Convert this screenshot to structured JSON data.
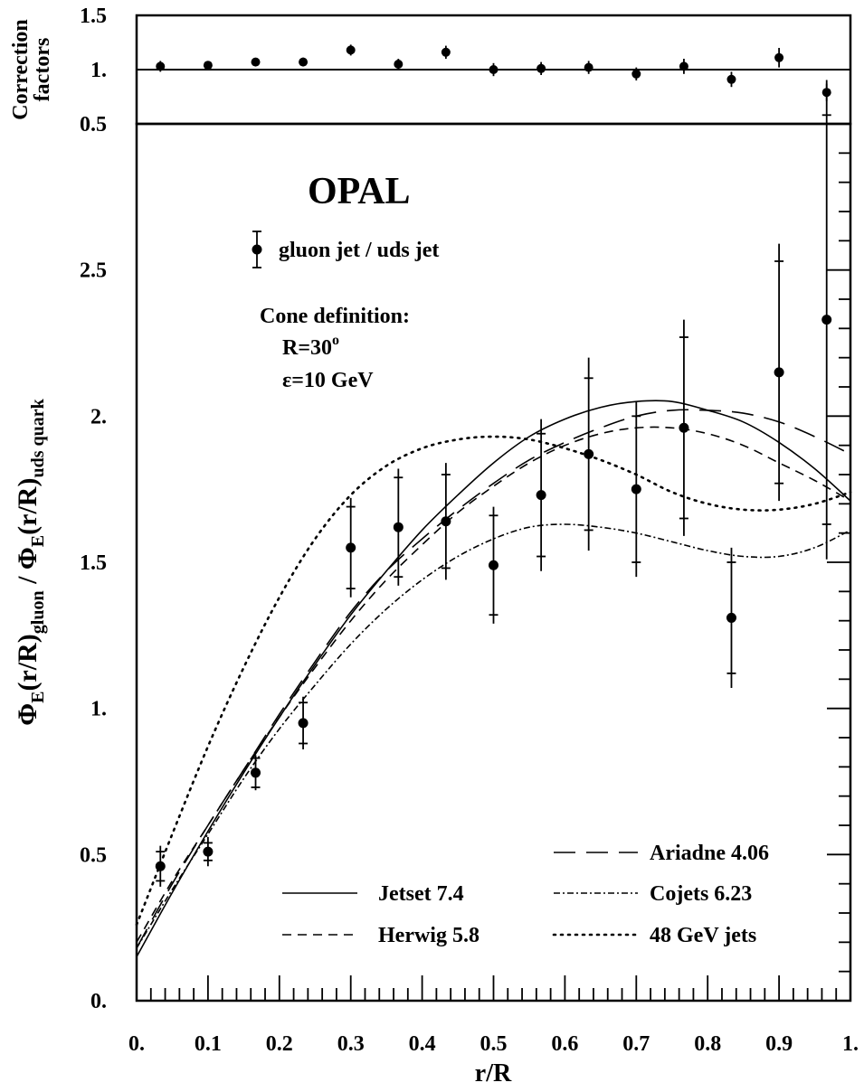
{
  "chart_data": [
    {
      "panel": "correction",
      "type": "scatter",
      "ylabel_line1": "Correction",
      "ylabel_line2": "factors",
      "xlim": [
        0,
        1
      ],
      "ylim": [
        0.5,
        1.5
      ],
      "y_ticks": [
        {
          "value": 0.5,
          "label": "0.5"
        },
        {
          "value": 1.0,
          "label": "1."
        },
        {
          "value": 1.5,
          "label": "1.5"
        }
      ],
      "reference_line": 1.0,
      "points": [
        {
          "x": 0.0333,
          "y": 1.03,
          "err": 0.05
        },
        {
          "x": 0.1,
          "y": 1.04,
          "err": 0.03
        },
        {
          "x": 0.1667,
          "y": 1.07,
          "err": 0.03
        },
        {
          "x": 0.2333,
          "y": 1.07,
          "err": 0.04
        },
        {
          "x": 0.3,
          "y": 1.18,
          "err": 0.05
        },
        {
          "x": 0.3667,
          "y": 1.05,
          "err": 0.05
        },
        {
          "x": 0.4333,
          "y": 1.16,
          "err": 0.06
        },
        {
          "x": 0.5,
          "y": 1.0,
          "err": 0.06
        },
        {
          "x": 0.5667,
          "y": 1.01,
          "err": 0.06
        },
        {
          "x": 0.6333,
          "y": 1.02,
          "err": 0.06
        },
        {
          "x": 0.7,
          "y": 0.96,
          "err": 0.06
        },
        {
          "x": 0.7667,
          "y": 1.03,
          "err": 0.07
        },
        {
          "x": 0.8333,
          "y": 0.91,
          "err": 0.07
        },
        {
          "x": 0.9,
          "y": 1.11,
          "err": 0.09
        },
        {
          "x": 0.9667,
          "y": 0.79,
          "err": 0.08
        }
      ]
    },
    {
      "panel": "main",
      "type": "line",
      "experiment_label": "OPAL",
      "xlabel": "r/R",
      "ylabel_main": "Φ",
      "ylabel_E": "E",
      "ylabel_mid": "(r/R)",
      "ylabel_gluon": "gluon",
      "ylabel_slash": " / Φ",
      "ylabel_uds": "uds quark",
      "xlim": [
        0,
        1
      ],
      "ylim": [
        0,
        3
      ],
      "x_ticks": [
        {
          "value": 0.0,
          "label": "0."
        },
        {
          "value": 0.1,
          "label": "0.1"
        },
        {
          "value": 0.2,
          "label": "0.2"
        },
        {
          "value": 0.3,
          "label": "0.3"
        },
        {
          "value": 0.4,
          "label": "0.4"
        },
        {
          "value": 0.5,
          "label": "0.5"
        },
        {
          "value": 0.6,
          "label": "0.6"
        },
        {
          "value": 0.7,
          "label": "0.7"
        },
        {
          "value": 0.8,
          "label": "0.8"
        },
        {
          "value": 0.9,
          "label": "0.9"
        },
        {
          "value": 1.0,
          "label": "1."
        }
      ],
      "y_ticks": [
        {
          "value": 0.0,
          "label": "0."
        },
        {
          "value": 0.5,
          "label": "0.5"
        },
        {
          "value": 1.0,
          "label": "1."
        },
        {
          "value": 1.5,
          "label": "1.5"
        },
        {
          "value": 2.0,
          "label": "2."
        },
        {
          "value": 2.5,
          "label": "2.5"
        }
      ],
      "data_points": {
        "name": "gluon jet / uds jet",
        "points": [
          {
            "x": 0.0333,
            "y": 0.46,
            "err_stat": 0.05,
            "err_tot": 0.07
          },
          {
            "x": 0.1,
            "y": 0.51,
            "err_stat": 0.03,
            "err_tot": 0.05
          },
          {
            "x": 0.1667,
            "y": 0.78,
            "err_stat": 0.05,
            "err_tot": 0.06
          },
          {
            "x": 0.2333,
            "y": 0.95,
            "err_stat": 0.07,
            "err_tot": 0.09
          },
          {
            "x": 0.3,
            "y": 1.55,
            "err_stat": 0.14,
            "err_tot": 0.17
          },
          {
            "x": 0.3667,
            "y": 1.62,
            "err_stat": 0.17,
            "err_tot": 0.2
          },
          {
            "x": 0.4333,
            "y": 1.64,
            "err_stat": 0.16,
            "err_tot": 0.2
          },
          {
            "x": 0.5,
            "y": 1.49,
            "err_stat": 0.17,
            "err_tot": 0.2
          },
          {
            "x": 0.5667,
            "y": 1.73,
            "err_stat": 0.21,
            "err_tot": 0.26
          },
          {
            "x": 0.6333,
            "y": 1.87,
            "err_stat": 0.26,
            "err_tot": 0.33
          },
          {
            "x": 0.7,
            "y": 1.75,
            "err_stat": 0.25,
            "err_tot": 0.3
          },
          {
            "x": 0.7667,
            "y": 1.96,
            "err_stat": 0.31,
            "err_tot": 0.37
          },
          {
            "x": 0.8333,
            "y": 1.31,
            "err_stat": 0.19,
            "err_tot": 0.24
          },
          {
            "x": 0.9,
            "y": 2.15,
            "err_stat": 0.38,
            "err_tot": 0.44
          },
          {
            "x": 0.9667,
            "y": 2.33,
            "err_stat": 0.7,
            "err_tot": 0.82
          }
        ]
      },
      "series": [
        {
          "name": "Jetset 7.4",
          "style": "solid",
          "x": [
            0,
            0.05,
            0.1,
            0.15,
            0.2,
            0.25,
            0.3,
            0.35,
            0.4,
            0.45,
            0.5,
            0.55,
            0.6,
            0.65,
            0.7,
            0.75,
            0.8,
            0.85,
            0.9,
            0.95,
            1.0
          ],
          "y": [
            0.15,
            0.37,
            0.58,
            0.78,
            0.97,
            1.15,
            1.32,
            1.47,
            1.61,
            1.73,
            1.84,
            1.93,
            1.99,
            2.03,
            2.05,
            2.05,
            2.02,
            1.98,
            1.91,
            1.82,
            1.71
          ]
        },
        {
          "name": "Herwig 5.8",
          "style": "dashed",
          "x": [
            0,
            0.05,
            0.1,
            0.15,
            0.2,
            0.25,
            0.3,
            0.35,
            0.4,
            0.45,
            0.5,
            0.55,
            0.6,
            0.65,
            0.7,
            0.75,
            0.8,
            0.85,
            0.9,
            0.95,
            1.0
          ],
          "y": [
            0.2,
            0.41,
            0.6,
            0.79,
            0.97,
            1.14,
            1.3,
            1.44,
            1.56,
            1.67,
            1.76,
            1.84,
            1.9,
            1.94,
            1.96,
            1.96,
            1.94,
            1.9,
            1.84,
            1.78,
            1.71
          ]
        },
        {
          "name": "Ariadne 4.06",
          "style": "longdash",
          "x": [
            0,
            0.05,
            0.1,
            0.15,
            0.2,
            0.25,
            0.3,
            0.35,
            0.4,
            0.45,
            0.5,
            0.55,
            0.6,
            0.65,
            0.7,
            0.75,
            0.8,
            0.85,
            0.9,
            0.95,
            1.0
          ],
          "y": [
            0.18,
            0.4,
            0.6,
            0.79,
            0.98,
            1.16,
            1.33,
            1.47,
            1.58,
            1.68,
            1.77,
            1.85,
            1.91,
            1.96,
            2.0,
            2.02,
            2.02,
            2.01,
            1.98,
            1.93,
            1.87
          ]
        },
        {
          "name": "Cojets 6.23",
          "style": "dashdot",
          "x": [
            0,
            0.05,
            0.1,
            0.15,
            0.2,
            0.25,
            0.3,
            0.35,
            0.4,
            0.45,
            0.5,
            0.55,
            0.6,
            0.65,
            0.7,
            0.75,
            0.8,
            0.85,
            0.9,
            0.95,
            1.0
          ],
          "y": [
            0.18,
            0.38,
            0.57,
            0.76,
            0.93,
            1.08,
            1.22,
            1.34,
            1.44,
            1.52,
            1.58,
            1.62,
            1.63,
            1.62,
            1.6,
            1.57,
            1.54,
            1.52,
            1.52,
            1.55,
            1.61
          ]
        },
        {
          "name": "48 GeV jets",
          "style": "dotted",
          "x": [
            0,
            0.05,
            0.1,
            0.15,
            0.2,
            0.25,
            0.3,
            0.35,
            0.4,
            0.45,
            0.5,
            0.55,
            0.6,
            0.65,
            0.7,
            0.75,
            0.8,
            0.85,
            0.9,
            0.95,
            1.0
          ],
          "y": [
            0.26,
            0.57,
            0.87,
            1.14,
            1.38,
            1.58,
            1.73,
            1.83,
            1.89,
            1.92,
            1.93,
            1.92,
            1.89,
            1.85,
            1.8,
            1.74,
            1.7,
            1.68,
            1.68,
            1.7,
            1.74
          ]
        }
      ],
      "annotation": {
        "cone_title": "Cone definition:",
        "r_prefix": "R=30",
        "r_sup": "o",
        "eps": "ε=10 GeV"
      }
    }
  ]
}
